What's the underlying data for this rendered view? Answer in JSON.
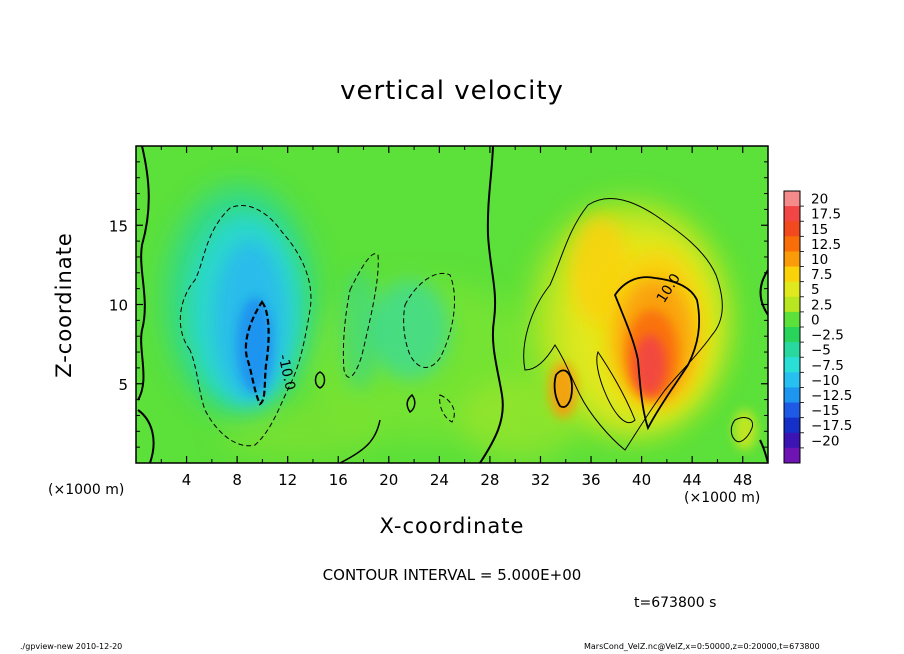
{
  "chart_data": {
    "type": "heatmap",
    "title": "vertical velocity",
    "xlabel": "X-coordinate",
    "ylabel": "Z-coordinate",
    "x_unit_label": "(×1000 m)",
    "xlim": [
      0,
      50
    ],
    "ylim": [
      0,
      20
    ],
    "x_ticks": [
      4,
      8,
      12,
      16,
      20,
      24,
      28,
      32,
      36,
      40,
      44,
      48
    ],
    "y_ticks": [
      5,
      10,
      15
    ],
    "colorbar": {
      "levels": [
        20,
        17.5,
        15,
        12.5,
        10,
        7.5,
        5,
        2.5,
        0,
        -2.5,
        -5,
        -7.5,
        -10,
        -12.5,
        -15,
        -17.5,
        -20
      ],
      "colors": [
        "#f48a8a",
        "#f24545",
        "#f24a1e",
        "#fa6e0a",
        "#fa9c0a",
        "#fad20a",
        "#e0e81e",
        "#b8e620",
        "#5ce03a",
        "#2ad45a",
        "#28d89e",
        "#2ae0d6",
        "#28c0f0",
        "#1e96f0",
        "#1e5ae6",
        "#1430c8",
        "#3c14b4",
        "#6e14b4"
      ]
    },
    "contour_labels": [
      "-10.0",
      "10.0"
    ],
    "features": [
      {
        "kind": "downdraft",
        "x": 10,
        "z": 8,
        "peak": -11
      },
      {
        "kind": "updraft",
        "x": 40,
        "z": 6.5,
        "peak": 17
      },
      {
        "kind": "updraft",
        "x": 33.5,
        "z": 5,
        "peak": 9
      }
    ]
  },
  "annotations": {
    "contour_interval": "CONTOUR INTERVAL = 5.000E+00",
    "time": "t=673800 s",
    "footer_left": "./gpview-new  2010-12-20",
    "footer_right": "MarsCond_VelZ.nc@VelZ,x=0:50000,z=0:20000,t=673800"
  }
}
